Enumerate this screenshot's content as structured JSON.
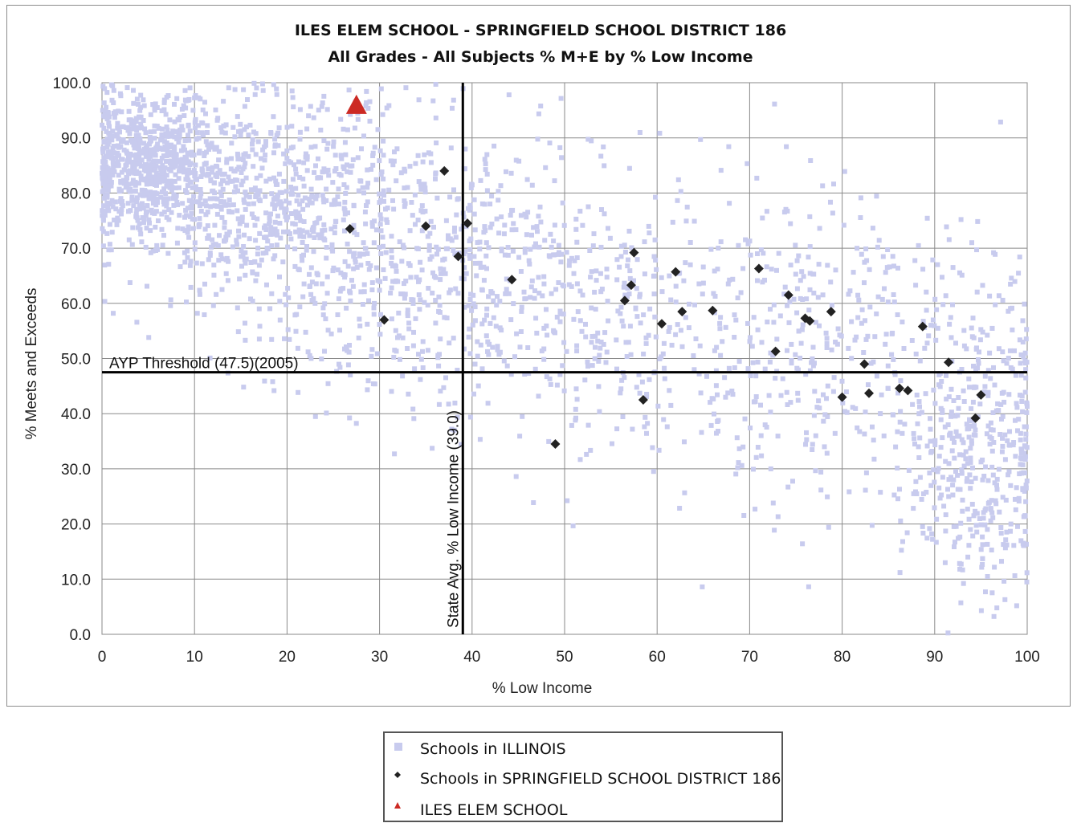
{
  "chart_data": {
    "type": "scatter",
    "title": "ILES ELEM SCHOOL - SPRINGFIELD SCHOOL DISTRICT 186",
    "subtitle": "All Grades - All Subjects % M+E by % Low Income",
    "xlabel": "% Low Income",
    "ylabel": "% Meets and Exceeds",
    "xlim": [
      0,
      100
    ],
    "ylim": [
      0,
      100
    ],
    "xticks": [
      "0",
      "10",
      "20",
      "30",
      "40",
      "50",
      "60",
      "70",
      "80",
      "90",
      "100"
    ],
    "yticks": [
      "0.0",
      "10.0",
      "20.0",
      "30.0",
      "40.0",
      "50.0",
      "60.0",
      "70.0",
      "80.0",
      "90.0",
      "100.0"
    ],
    "grid": true,
    "legend_position": "bottom",
    "reference_lines": [
      {
        "orientation": "horizontal",
        "value": 47.5,
        "label": "AYP Threshold (47.5)(2005)"
      },
      {
        "orientation": "vertical",
        "value": 39.0,
        "label": "State Avg. % Low Income (39.0)"
      }
    ],
    "series": [
      {
        "name": "Schools in ILLINOIS",
        "marker": "square",
        "color": "#c8cbee",
        "clusters": [
          {
            "x_mean": 5,
            "x_sd": 4,
            "y_mean": 85,
            "y_sd": 6,
            "n": 700
          },
          {
            "x_mean": 18,
            "x_sd": 8,
            "y_mean": 78,
            "y_sd": 10,
            "n": 650
          },
          {
            "x_mean": 35,
            "x_sd": 10,
            "y_mean": 68,
            "y_sd": 12,
            "n": 520
          },
          {
            "x_mean": 55,
            "x_sd": 12,
            "y_mean": 58,
            "y_sd": 14,
            "n": 420
          },
          {
            "x_mean": 78,
            "x_sd": 10,
            "y_mean": 50,
            "y_sd": 15,
            "n": 320
          },
          {
            "x_mean": 95,
            "x_sd": 4,
            "y_mean": 35,
            "y_sd": 14,
            "n": 420
          }
        ]
      },
      {
        "name": "Schools in SPRINGFIELD SCHOOL DISTRICT 186",
        "marker": "diamond",
        "color": "#222222",
        "points": [
          [
            26.8,
            73.5
          ],
          [
            30.5,
            57.0
          ],
          [
            35.0,
            74.0
          ],
          [
            37.0,
            84.0
          ],
          [
            38.5,
            68.5
          ],
          [
            39.5,
            74.5
          ],
          [
            44.3,
            64.3
          ],
          [
            49.0,
            34.5
          ],
          [
            56.5,
            60.5
          ],
          [
            57.2,
            63.3
          ],
          [
            57.5,
            69.2
          ],
          [
            58.5,
            42.5
          ],
          [
            60.5,
            56.3
          ],
          [
            62.0,
            65.7
          ],
          [
            62.7,
            58.5
          ],
          [
            66.0,
            58.7
          ],
          [
            71.0,
            66.3
          ],
          [
            72.8,
            51.3
          ],
          [
            74.2,
            61.5
          ],
          [
            76.0,
            57.3
          ],
          [
            76.5,
            56.8
          ],
          [
            78.8,
            58.5
          ],
          [
            80.0,
            43.0
          ],
          [
            82.4,
            49.0
          ],
          [
            82.9,
            43.7
          ],
          [
            86.2,
            44.6
          ],
          [
            87.1,
            44.2
          ],
          [
            88.7,
            55.8
          ],
          [
            91.5,
            49.3
          ],
          [
            94.4,
            39.2
          ],
          [
            95.0,
            43.4
          ]
        ]
      },
      {
        "name": "ILES ELEM SCHOOL",
        "marker": "triangle",
        "color": "#cc2a24",
        "points": [
          [
            27.5,
            95.8
          ]
        ]
      }
    ]
  }
}
